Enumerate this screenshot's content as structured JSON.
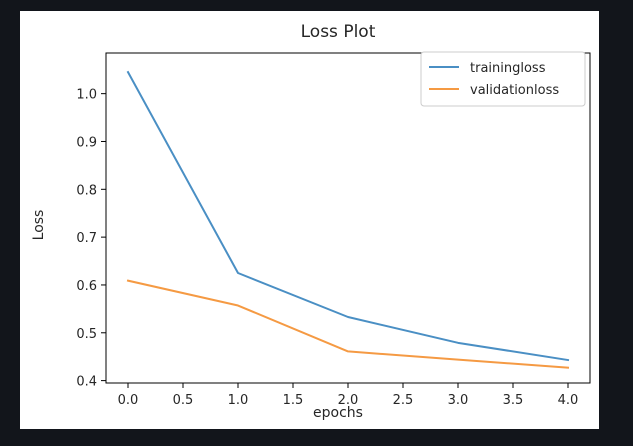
{
  "chart_data": {
    "type": "line",
    "title": "Loss Plot",
    "xlabel": "epochs",
    "ylabel": "Loss",
    "x": [
      0,
      1,
      2,
      3,
      4
    ],
    "xlim": [
      -0.2,
      4.2
    ],
    "ylim": [
      0.395,
      1.085
    ],
    "xticks": [
      0.0,
      0.5,
      1.0,
      1.5,
      2.0,
      2.5,
      3.0,
      3.5,
      4.0
    ],
    "xtick_labels": [
      "0.0",
      "0.5",
      "1.0",
      "1.5",
      "2.0",
      "2.5",
      "3.0",
      "3.5",
      "4.0"
    ],
    "yticks": [
      0.4,
      0.5,
      0.6,
      0.7,
      0.8,
      0.9,
      1.0
    ],
    "ytick_labels": [
      "0.4",
      "0.5",
      "0.6",
      "0.7",
      "0.8",
      "0.9",
      "1.0"
    ],
    "grid": false,
    "legend_position": "top-right",
    "series": [
      {
        "name": "trainingloss",
        "color": "#4a8fc4",
        "values": [
          1.045,
          0.625,
          0.533,
          0.479,
          0.443
        ]
      },
      {
        "name": "validationloss",
        "color": "#f59a43",
        "values": [
          0.609,
          0.557,
          0.461,
          0.444,
          0.427
        ]
      }
    ]
  }
}
